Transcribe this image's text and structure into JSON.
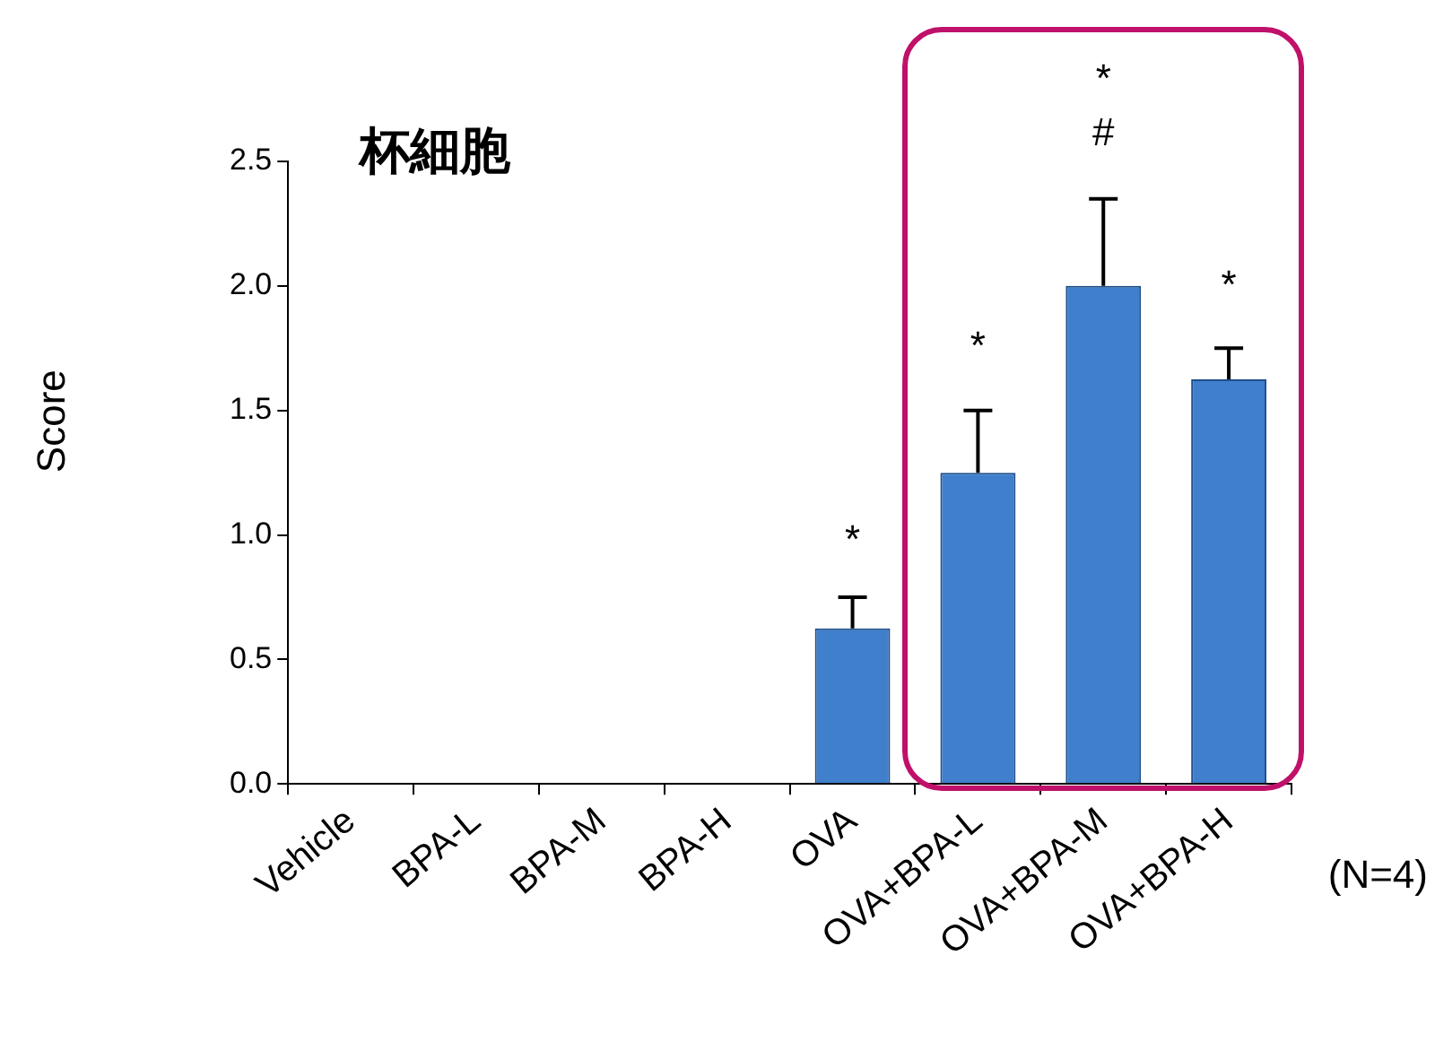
{
  "chart_data": {
    "type": "bar",
    "title": "杯細胞",
    "ylabel": "Score",
    "categories": [
      "Vehicle",
      "BPA-L",
      "BPA-M",
      "BPA-H",
      "OVA",
      "OVA+BPA-L",
      "OVA+BPA-M",
      "OVA+BPA-H"
    ],
    "values": [
      0,
      0,
      0,
      0,
      0.625,
      1.25,
      2.0,
      1.625
    ],
    "errors": [
      null,
      null,
      null,
      null,
      [
        0.625,
        0.75
      ],
      [
        1.25,
        1.5
      ],
      [
        2.0,
        2.35
      ],
      [
        1.625,
        1.75
      ]
    ],
    "color": "#3f7fcc",
    "ylim": [
      0,
      2.5
    ],
    "yticks": [
      {
        "value": 0,
        "label": "0.0"
      },
      {
        "value": 0.5,
        "label": "0.5"
      },
      {
        "value": 1,
        "label": "1.0"
      },
      {
        "value": 1.5,
        "label": "1.5"
      },
      {
        "value": 2,
        "label": "2.0"
      },
      {
        "value": 2.5,
        "label": "2.5"
      }
    ],
    "grid": false,
    "legend": false,
    "annotations": [
      "*",
      "*",
      "*",
      "#",
      "*",
      "(N=4)"
    ]
  }
}
